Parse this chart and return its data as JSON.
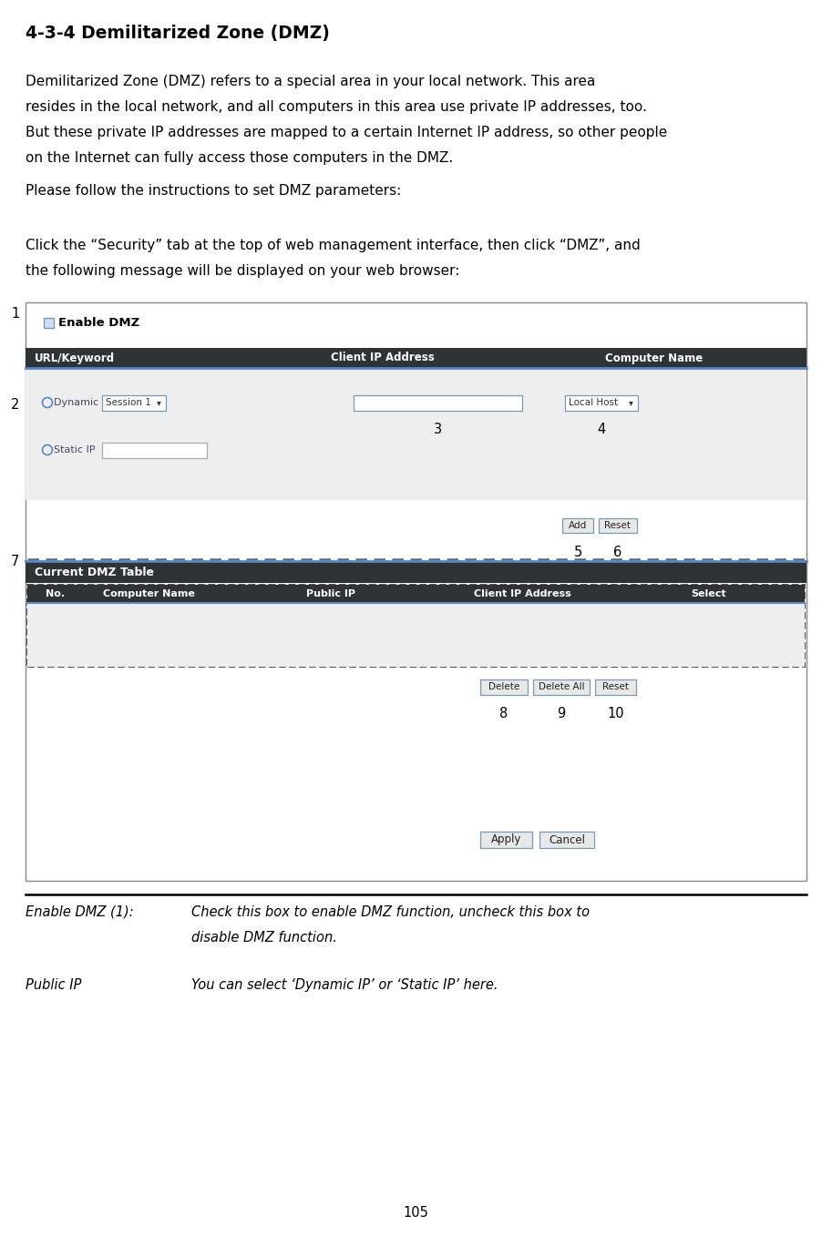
{
  "title": "4-3-4 Demilitarized Zone (DMZ)",
  "bg_color": "#ffffff",
  "body_text_1a": "Demilitarized Zone (DMZ) refers to a special area in your local network. This area",
  "body_text_1b": "resides in the local network, and all computers in this area use private IP addresses, too.",
  "body_text_1c": "But these private IP addresses are mapped to a certain Internet IP address, so other people",
  "body_text_1d": "on the Internet can fully access those computers in the DMZ.",
  "body_text_2": "Please follow the instructions to set DMZ parameters:",
  "body_text_3a": "Click the “Security” tab at the top of web management interface, then click “DMZ”, and",
  "body_text_3b": "the following message will be displayed on your web browser:",
  "header_dark": "#2e3436",
  "header_blue_line": "#5588cc",
  "panel_bg": "#f0f0f0",
  "panel_border": "#999999",
  "btn_bg": "#e8e8e8",
  "btn_border": "#7799bb",
  "dashed_border": "#555555",
  "footer_label1": "Enable DMZ (1):",
  "footer_text1a": "Check this box to enable DMZ function, uncheck this box to",
  "footer_text1b": "disable DMZ function.",
  "footer_label2": "Public IP",
  "footer_text2": "You can select ‘Dynamic IP’ or ‘Static IP’ here.",
  "page_number": "105"
}
